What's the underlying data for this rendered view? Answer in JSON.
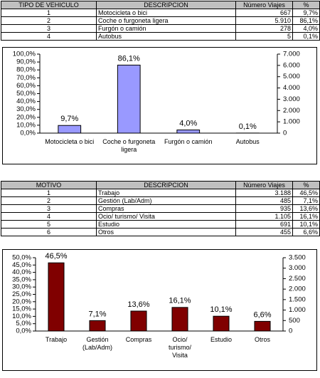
{
  "tables": [
    {
      "header": [
        "TIPO DE VEHICULO",
        "DESCRIPCION",
        "Número Viajes",
        "%"
      ],
      "rows": [
        [
          "1",
          "Motocicleta o bici",
          "667",
          "9,7%"
        ],
        [
          "2",
          "Coche o furgoneta ligera",
          "5.910",
          "86,1%"
        ],
        [
          "3",
          "Furgón o camión",
          "278",
          "4,0%"
        ],
        [
          "4",
          "Autobus",
          "5",
          "0,1%"
        ]
      ]
    },
    {
      "header": [
        "MOTIVO",
        "DESCRIPCION",
        "Número Viajes",
        "%"
      ],
      "rows": [
        [
          "1",
          "Trabajo",
          "3.188",
          "46,5%"
        ],
        [
          "2",
          "Gestión (Lab/Adm)",
          "485",
          "7,1%"
        ],
        [
          "3",
          "Compras",
          "935",
          "13,6%"
        ],
        [
          "4",
          "Ocio/ turismo/ Visita",
          "1.105",
          "16,1%"
        ],
        [
          "5",
          "Estudio",
          "691",
          "10,1%"
        ],
        [
          "6",
          "Otros",
          "455",
          "6,6%"
        ]
      ]
    }
  ],
  "chart_data": [
    {
      "type": "bar",
      "categories": [
        "Motocicleta o bici",
        "Coche o furgoneta ligera",
        "Furgón o camión",
        "Autobus"
      ],
      "values": [
        9.7,
        86.1,
        4.0,
        0.1
      ],
      "value_labels": [
        "9,7%",
        "86,1%",
        "4,0%",
        "0,1%"
      ],
      "color": "#9999ff",
      "ylim": [
        0,
        100
      ],
      "yticks": [
        {
          "value": 0,
          "label": "0,0%"
        },
        {
          "value": 10,
          "label": "10,0%"
        },
        {
          "value": 20,
          "label": "20,0%"
        },
        {
          "value": 30,
          "label": "30,0%"
        },
        {
          "value": 40,
          "label": "40,0%"
        },
        {
          "value": 50,
          "label": "50,0%"
        },
        {
          "value": 60,
          "label": "60,0%"
        },
        {
          "value": 70,
          "label": "70,0%"
        },
        {
          "value": 80,
          "label": "80,0%"
        },
        {
          "value": 90,
          "label": "90,0%"
        },
        {
          "value": 100,
          "label": "100,0%"
        }
      ],
      "y2lim": [
        0,
        7000
      ],
      "y2ticks": [
        0,
        {
          "value": 1000,
          "label": "1.000"
        },
        {
          "value": 2000,
          "label": "2.000"
        },
        {
          "value": 3000,
          "label": "3.000"
        },
        {
          "value": 4000,
          "label": "4.000"
        },
        {
          "value": 5000,
          "label": "5.000"
        },
        {
          "value": 6000,
          "label": "6.000"
        },
        {
          "value": 7000,
          "label": "7.000"
        }
      ]
    },
    {
      "type": "bar",
      "categories": [
        "Trabajo",
        "Gestión (Lab/Adm)",
        "Compras",
        "Ocio/ turismo/ Visita",
        "Estudio",
        "Otros"
      ],
      "values": [
        46.5,
        7.1,
        13.6,
        16.1,
        10.1,
        6.6
      ],
      "value_labels": [
        "46,5%",
        "7,1%",
        "13,6%",
        "16,1%",
        "10,1%",
        "6,6%"
      ],
      "color": "#800000",
      "ylim": [
        0,
        50
      ],
      "yticks": [
        {
          "value": 0,
          "label": "0,0%"
        },
        {
          "value": 5,
          "label": "5,0%"
        },
        {
          "value": 10,
          "label": "10,0%"
        },
        {
          "value": 15,
          "label": "15,0%"
        },
        {
          "value": 20,
          "label": "20,0%"
        },
        {
          "value": 25,
          "label": "25,0%"
        },
        {
          "value": 30,
          "label": "30,0%"
        },
        {
          "value": 35,
          "label": "35,0%"
        },
        {
          "value": 40,
          "label": "40,0%"
        },
        {
          "value": 45,
          "label": "45,0%"
        },
        {
          "value": 50,
          "label": "50,0%"
        }
      ],
      "y2lim": [
        0,
        3500
      ],
      "y2ticks": [
        0,
        500,
        {
          "value": 1000,
          "label": "1.000"
        },
        {
          "value": 1500,
          "label": "1.500"
        },
        {
          "value": 2000,
          "label": "2.000"
        },
        {
          "value": 2500,
          "label": "2.500"
        },
        {
          "value": 3000,
          "label": "3.000"
        },
        {
          "value": 3500,
          "label": "3.500"
        }
      ]
    }
  ]
}
